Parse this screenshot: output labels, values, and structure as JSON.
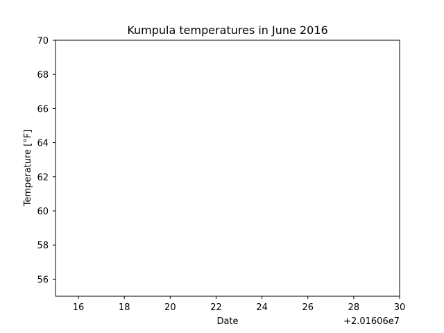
{
  "chart_data": {
    "type": "line",
    "title": "Kumpula temperatures in June 2016",
    "xlabel": "Date",
    "ylabel": "Temperature [°F]",
    "xlim": [
      15,
      30
    ],
    "ylim": [
      55,
      70
    ],
    "x_ticks": [
      "16",
      "18",
      "20",
      "22",
      "24",
      "26",
      "28",
      "30"
    ],
    "y_ticks": [
      "56",
      "58",
      "60",
      "62",
      "64",
      "66",
      "68",
      "70"
    ],
    "x_offset_label": "+2.01606e7",
    "grid": false,
    "series": []
  }
}
